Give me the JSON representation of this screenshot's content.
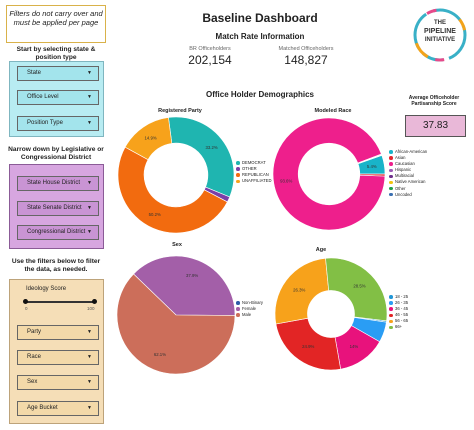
{
  "sidebar": {
    "notice": "Filters do not carry over and must be applied per page",
    "position_title": "Start by selecting state & position type",
    "position_filters": [
      "State",
      "Office Level",
      "Position Type"
    ],
    "district_title": "Narrow down by Legislative or Congressional District",
    "district_filters": [
      "State House District",
      "State Senate District",
      "Congressional District"
    ],
    "extra_title": "Use the filters below to filter the data, as needed.",
    "ideology": {
      "label": "Ideology Score",
      "min": "0",
      "max": "100",
      "range": [
        0,
        100
      ]
    },
    "extra_filters": [
      "Party",
      "Race",
      "Sex",
      "Age Bucket"
    ]
  },
  "header": {
    "title": "Baseline Dashboard",
    "match_title": "Match Rate Information",
    "br_label": "BR Officeholders",
    "br_value": "202,154",
    "matched_label": "Matched Officeholders",
    "matched_value": "148,827"
  },
  "logo": {
    "line1": "THE",
    "line2": "PIPELINE",
    "line3": "INITIATIVE"
  },
  "demographics_title": "Office Holder Demographics",
  "score": {
    "label": "Average Officeholder Partisanship Score",
    "value": "37.83"
  },
  "chart_data": [
    {
      "type": "pie",
      "title": "Registered Party",
      "series": [
        {
          "name": "DEMOCRAT",
          "value": 33.2,
          "label": "33.2%",
          "color": "#1fb5b0"
        },
        {
          "name": "OTHER",
          "value": 1.5,
          "label": "",
          "color": "#7b3fa8"
        },
        {
          "name": "REPUBLICAN",
          "value": 50.2,
          "label": "50.2%",
          "color": "#f26b0f"
        },
        {
          "name": "UNAFFILIATED",
          "value": 14.9,
          "label": "14.9%",
          "color": "#f7a21b"
        }
      ]
    },
    {
      "type": "pie",
      "title": "Modeled Race",
      "series": [
        {
          "name": "African-American",
          "value": 5.4,
          "label": "5.4%",
          "color": "#19b4c9"
        },
        {
          "name": "Asian",
          "value": 0.6,
          "label": "",
          "color": "#e3262e"
        },
        {
          "name": "Caucasian",
          "value": 93.6,
          "label": "93.6%",
          "color": "#ee1f8c"
        },
        {
          "name": "Hispanic",
          "value": 0.2,
          "label": "",
          "color": "#9b59b6"
        },
        {
          "name": "Multiracial",
          "value": 0.1,
          "label": "",
          "color": "#6e2f8c"
        },
        {
          "name": "Native American",
          "value": 0.1,
          "label": "",
          "color": "#f2c40f"
        },
        {
          "name": "Other",
          "value": 0.0,
          "label": "",
          "color": "#1fa04a"
        },
        {
          "name": "Uncoded",
          "value": 0.0,
          "label": "",
          "color": "#3a6fb0"
        }
      ]
    },
    {
      "type": "pie",
      "title": "Sex",
      "series": [
        {
          "name": "Non-Binary",
          "value": 0.0,
          "label": "",
          "color": "#2e5aa8"
        },
        {
          "name": "Female",
          "value": 37.9,
          "label": "37.9%",
          "color": "#a35fa8"
        },
        {
          "name": "Male",
          "value": 62.1,
          "label": "62.1%",
          "color": "#cc6e5a"
        }
      ]
    },
    {
      "type": "pie",
      "title": "Age",
      "series": [
        {
          "name": "18 - 25",
          "value": 0.4,
          "label": "",
          "color": "#2196d6"
        },
        {
          "name": "26 - 35",
          "value": 5.9,
          "label": "",
          "color": "#2a9df4"
        },
        {
          "name": "36 - 45",
          "value": 14.0,
          "label": "14%",
          "color": "#e8127c"
        },
        {
          "name": "46 - 55",
          "value": 24.9,
          "label": "24.9%",
          "color": "#e22525"
        },
        {
          "name": "56 - 65",
          "value": 26.3,
          "label": "26.3%",
          "color": "#f7a21b"
        },
        {
          "name": "66+",
          "value": 28.5,
          "label": "28.5%",
          "color": "#82bf45"
        }
      ]
    }
  ]
}
